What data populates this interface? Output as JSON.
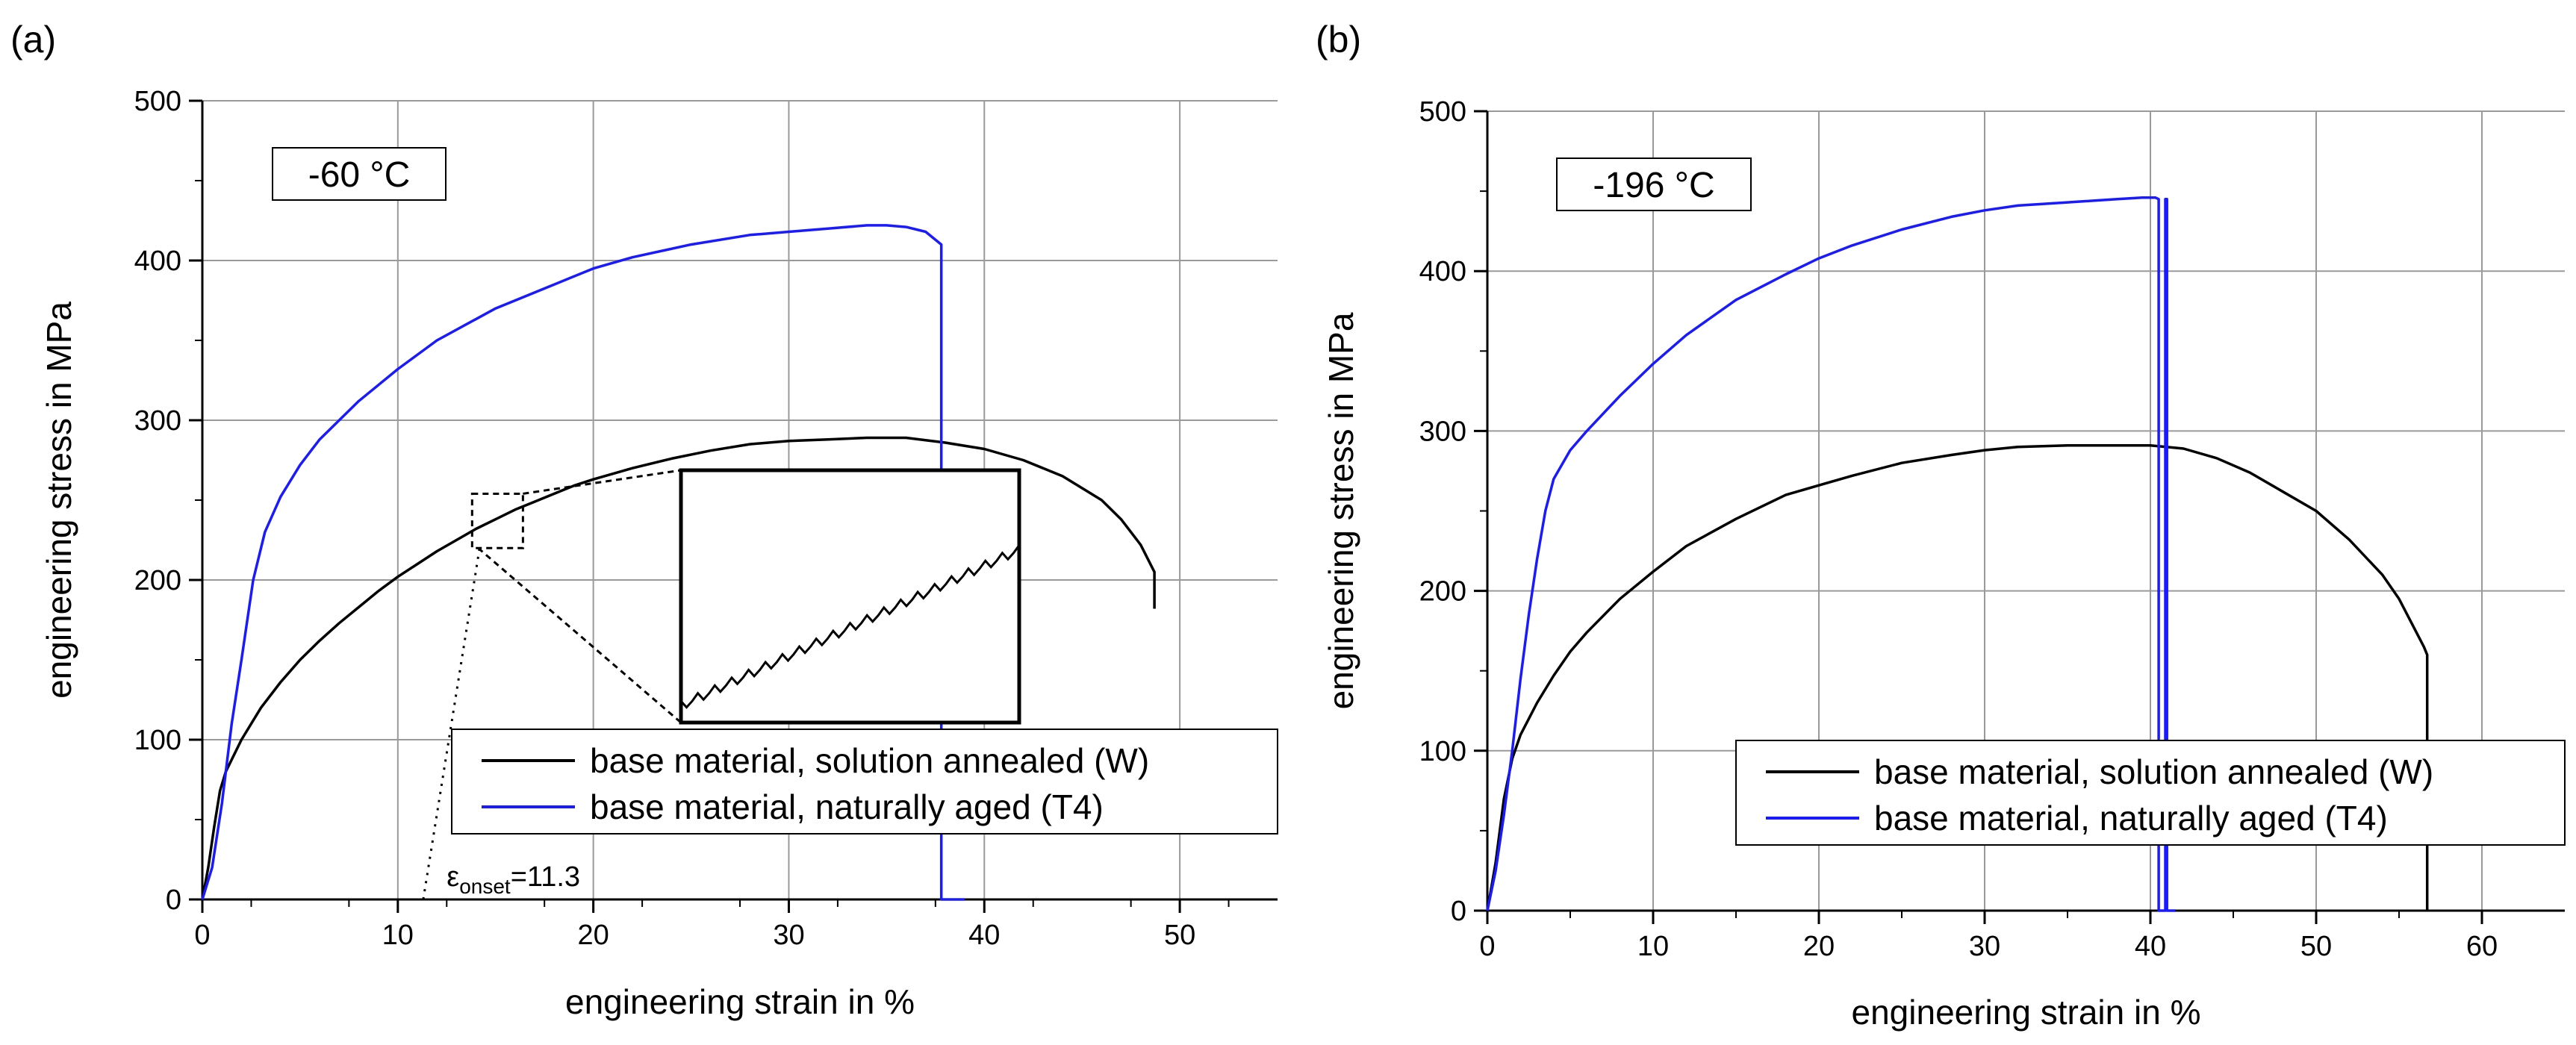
{
  "chart_data": [
    {
      "type": "line",
      "panel_label": "(a)",
      "temperature_label": "-60 °C",
      "xlabel": "engineering strain in %",
      "ylabel": "engineering stress in MPa",
      "xlim": [
        0,
        55
      ],
      "ylim": [
        0,
        500
      ],
      "xticks": [
        "0",
        "10",
        "20",
        "30",
        "40",
        "50"
      ],
      "yticks": [
        "0",
        "100",
        "200",
        "300",
        "400",
        "500"
      ],
      "grid": true,
      "legend_position": "bottom-right",
      "onset_label": {
        "symbol": "ε",
        "sub": "onset",
        "value": "=11.3"
      },
      "series": [
        {
          "name": "base material, solution annealed (W)",
          "color": "#000000",
          "points": [
            [
              0,
              0
            ],
            [
              0.3,
              20
            ],
            [
              0.6,
              45
            ],
            [
              0.9,
              68
            ],
            [
              1.2,
              80
            ],
            [
              2,
              100
            ],
            [
              3,
              120
            ],
            [
              4,
              136
            ],
            [
              5,
              150
            ],
            [
              6,
              162
            ],
            [
              7,
              173
            ],
            [
              8,
              183
            ],
            [
              9,
              193
            ],
            [
              10,
              202
            ],
            [
              11,
              210
            ],
            [
              12,
              218
            ],
            [
              13,
              225
            ],
            [
              14,
              232
            ],
            [
              15,
              238
            ],
            [
              16,
              244
            ],
            [
              17,
              249
            ],
            [
              18,
              254
            ],
            [
              19,
              259
            ],
            [
              20,
              263
            ],
            [
              22,
              270
            ],
            [
              24,
              276
            ],
            [
              26,
              281
            ],
            [
              28,
              285
            ],
            [
              30,
              287
            ],
            [
              32,
              288
            ],
            [
              34,
              289
            ],
            [
              35,
              289
            ],
            [
              36,
              289
            ],
            [
              38,
              286
            ],
            [
              40,
              282
            ],
            [
              42,
              275
            ],
            [
              44,
              265
            ],
            [
              46,
              250
            ],
            [
              47,
              238
            ],
            [
              48,
              222
            ],
            [
              48.7,
              205
            ],
            [
              48.7,
              182
            ]
          ]
        },
        {
          "name": "base material, naturally aged (T4)",
          "color": "#1a1aff",
          "points": [
            [
              0,
              0
            ],
            [
              0.5,
              20
            ],
            [
              1,
              60
            ],
            [
              1.5,
              110
            ],
            [
              2,
              150
            ],
            [
              2.6,
              200
            ],
            [
              3.2,
              230
            ],
            [
              4,
              252
            ],
            [
              5,
              272
            ],
            [
              6,
              288
            ],
            [
              8,
              312
            ],
            [
              10,
              332
            ],
            [
              12,
              350
            ],
            [
              15,
              370
            ],
            [
              18,
              385
            ],
            [
              20,
              395
            ],
            [
              22,
              402
            ],
            [
              25,
              410
            ],
            [
              28,
              416
            ],
            [
              30,
              418
            ],
            [
              32,
              420
            ],
            [
              34,
              422
            ],
            [
              35,
              422
            ],
            [
              36,
              421
            ],
            [
              37,
              418
            ],
            [
              37.8,
              410
            ],
            [
              37.8,
              0
            ],
            [
              39,
              0
            ]
          ]
        }
      ],
      "inset": {
        "x_range": [
          13.8,
          16.4
        ],
        "y_range": [
          220,
          254
        ],
        "points": [
          [
            13.8,
            222
          ],
          [
            14.2,
            225
          ],
          [
            14.6,
            228
          ],
          [
            15.0,
            231
          ],
          [
            15.4,
            234
          ],
          [
            15.8,
            238
          ],
          [
            16.2,
            241
          ],
          [
            16.4,
            243
          ]
        ]
      }
    },
    {
      "type": "line",
      "panel_label": "(b)",
      "temperature_label": "-196 °C",
      "xlabel": "engineering strain in %",
      "ylabel": "engineering stress in MPa",
      "xlim": [
        0,
        65
      ],
      "ylim": [
        0,
        500
      ],
      "xticks": [
        "0",
        "10",
        "20",
        "30",
        "40",
        "50",
        "60"
      ],
      "yticks": [
        "0",
        "100",
        "200",
        "300",
        "400",
        "500"
      ],
      "grid": true,
      "legend_position": "bottom-right",
      "series": [
        {
          "name": "base material, solution annealed (W)",
          "color": "#000000",
          "points": [
            [
              0,
              0
            ],
            [
              0.5,
              30
            ],
            [
              1,
              70
            ],
            [
              1.5,
              95
            ],
            [
              2,
              110
            ],
            [
              3,
              130
            ],
            [
              4,
              147
            ],
            [
              5,
              162
            ],
            [
              6,
              174
            ],
            [
              8,
              195
            ],
            [
              10,
              212
            ],
            [
              12,
              228
            ],
            [
              15,
              245
            ],
            [
              18,
              260
            ],
            [
              20,
              266
            ],
            [
              22,
              272
            ],
            [
              25,
              280
            ],
            [
              28,
              285
            ],
            [
              30,
              288
            ],
            [
              32,
              290
            ],
            [
              35,
              291
            ],
            [
              38,
              291
            ],
            [
              40,
              291
            ],
            [
              42,
              289
            ],
            [
              44,
              283
            ],
            [
              46,
              274
            ],
            [
              48,
              262
            ],
            [
              50,
              250
            ],
            [
              52,
              232
            ],
            [
              54,
              210
            ],
            [
              55,
              195
            ],
            [
              56.5,
              165
            ],
            [
              56.7,
              160
            ],
            [
              56.7,
              0
            ]
          ]
        },
        {
          "name": "base material, naturally aged (T4)",
          "color": "#1a1aff",
          "points": [
            [
              0,
              0
            ],
            [
              0.5,
              25
            ],
            [
              1,
              60
            ],
            [
              1.5,
              100
            ],
            [
              2,
              145
            ],
            [
              2.5,
              185
            ],
            [
              3,
              220
            ],
            [
              3.5,
              250
            ],
            [
              4,
              270
            ],
            [
              5,
              288
            ],
            [
              6,
              300
            ],
            [
              8,
              322
            ],
            [
              10,
              342
            ],
            [
              12,
              360
            ],
            [
              15,
              382
            ],
            [
              18,
              398
            ],
            [
              20,
              408
            ],
            [
              22,
              416
            ],
            [
              25,
              426
            ],
            [
              28,
              434
            ],
            [
              30,
              438
            ],
            [
              32,
              441
            ],
            [
              35,
              443
            ],
            [
              38,
              445
            ],
            [
              39.5,
              446
            ],
            [
              40.3,
              446
            ],
            [
              40.5,
              445
            ],
            [
              40.5,
              0
            ],
            [
              40.9,
              0
            ],
            [
              40.9,
              445
            ],
            [
              41,
              445
            ],
            [
              41,
              0
            ],
            [
              41.5,
              0
            ]
          ]
        }
      ]
    }
  ]
}
